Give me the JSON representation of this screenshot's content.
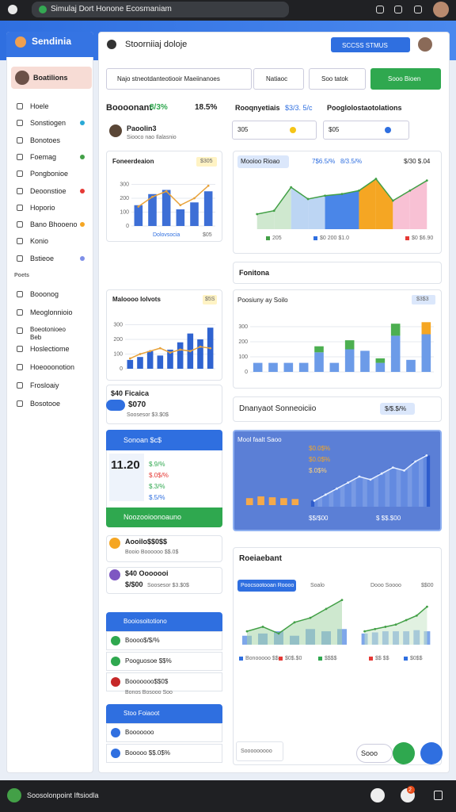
{
  "browser": {
    "tab": "Simulaj Dort Honone Ecosmaniam"
  },
  "sidebar": {
    "brand": "Sendinia",
    "user": "Boatilions",
    "items": [
      "Hoele",
      "Sonstiogen",
      "Bonotoes",
      "Foemag",
      "Pongbonioe",
      "Deoonstioe",
      "Hoporio",
      "Bano Bhooeno",
      "Konio",
      "Bstieoe"
    ],
    "section": "Poets",
    "items2": [
      "Booonog",
      "Meoglonnioio",
      "Boeotonioeo Beb",
      "Hoslectiome",
      "Hoeooonotion",
      "Frosloaiy",
      "Bosotooe"
    ]
  },
  "header": {
    "title": "Stoorniiaj doloje",
    "button": "SCCSS STMUS"
  },
  "toolbar": {
    "search": "Najo  stneotdanteotiooir Maeiinanoes",
    "filter": "Natiaoc",
    "sort": "Soo tatok",
    "action": "Sooo Bioen"
  },
  "summary": {
    "title": "Boooonant",
    "change": "8/3%",
    "rate": "18.5%",
    "profile_name": "Paoolin3",
    "profile_sub": "Siooco nao Ilalasnio",
    "metric1_label": "Rooqnyetiais",
    "metric1_value": "$3/3. 5/c",
    "metric2_label": "Pooglolostaotolations",
    "input1": "305",
    "input2": "$05"
  },
  "card_a": {
    "title": "Foneerdeaion",
    "badge": "$305",
    "footer": "Dolovsocia",
    "footer_value": "$05"
  },
  "card_b": {
    "tab": "Mooioo Rioao",
    "stat1": "7$6.5/%",
    "stat2": "8/3.5/%",
    "stat3": "$/30 $.04",
    "legend": [
      "205",
      "$0 200 $1.0",
      "$0 $6.90"
    ]
  },
  "card_c": {
    "title": "Fonitona"
  },
  "card_d": {
    "title": "Maloooo Iolvots",
    "badge": "$5S"
  },
  "card_e": {
    "title": "Poosiuny ay Soilo",
    "badge": "$3$3"
  },
  "card_f": {
    "label": "$40  Ficaica",
    "pill": "$070",
    "sub": "Soosesor $3.$0$"
  },
  "card_g": {
    "title": "Dnanyaot Sonneoiciio",
    "pill": "$/$.$/%"
  },
  "card_h": {
    "header": "Sonoan $c$",
    "big": "11.20",
    "rows": [
      "$.9/%",
      "$.0$/%",
      "$.3/%",
      "$.5/%"
    ],
    "footer": "Noozooioonoauno"
  },
  "card_i": {
    "title": "Mool faalt Saoo",
    "stats": [
      "$0.0$%",
      "$0.0$%",
      "$.0$%"
    ],
    "left": "$$/$00",
    "right": "$ $$.$00"
  },
  "list": [
    {
      "title": "Aooilo$$0$$",
      "sub": "Booio Boooooo $$.0$"
    },
    {
      "title": "$40 Ooooooi",
      "sub": "$/$00",
      "sub2": "Soosesor $3.$0$"
    }
  ],
  "group1": {
    "header": "Booiosoitotiono",
    "items": [
      "Boooo$/$/%",
      "Pooguosoe $$%",
      "Booooooo$$0$"
    ],
    "note": "Bonos Bosooo Soo"
  },
  "group2": {
    "header": "Stoo Foiaoot",
    "items": [
      "Booooooo",
      "Booooo $$.0$%"
    ]
  },
  "card_j": {
    "title": "Roeiaebant",
    "tab": "Poocsootooan Roooo",
    "col1": "Soalo",
    "col2": "Dooo Soooo",
    "col3": "$$00",
    "legend": [
      "Bonooooo $$",
      "$0$.$0",
      "$$$$",
      "$$ $$",
      "$0$$"
    ],
    "box": "Sooooooooo",
    "chip": "Sooo"
  },
  "taskbar": {
    "title": "Soosolonpoint Iftsiodla",
    "badge": "2"
  },
  "charts": [
    {
      "ylim": [
        0,
        400
      ],
      "yticks": [
        0,
        100,
        200,
        300
      ],
      "series": [
        {
          "kind": "bar",
          "color": "#3d6fd6",
          "values": [
            150,
            230,
            260,
            120,
            170,
            250
          ]
        },
        {
          "kind": "line",
          "color": "#e8a23a",
          "values": [
            140,
            210,
            250,
            150,
            200,
            290
          ]
        }
      ]
    },
    {
      "ylim": [
        0,
        350
      ],
      "yticks": [],
      "series": [
        {
          "kind": "area",
          "color": "#43a047",
          "values": [
            90,
            110,
            250,
            180,
            200,
            210,
            230,
            300,
            170,
            230,
            290
          ],
          "segment_colors": [
            "#cfe8cf",
            "#cfe8cf",
            "#bcd5f3",
            "#bcd5f3",
            "#4a86e8",
            "#4a86e8",
            "#f5a623",
            "#f5a623",
            "#f8c1d4",
            "#f8c1d4"
          ]
        }
      ]
    },
    {
      "ylim": [
        0,
        400
      ],
      "yticks": [
        0,
        100,
        200,
        300
      ],
      "series": [
        {
          "kind": "bar",
          "color": "#2f63d0",
          "values": [
            60,
            80,
            120,
            90,
            130,
            180,
            240,
            200,
            280
          ]
        },
        {
          "kind": "line",
          "color": "#e8a23a",
          "values": [
            70,
            100,
            120,
            140,
            110,
            130,
            120,
            150,
            140
          ]
        }
      ]
    },
    {
      "ylim": [
        0,
        400
      ],
      "yticks": [
        0,
        100,
        200,
        300
      ],
      "stacked": true,
      "series": [
        {
          "kind": "bar",
          "color": "#6c9be8",
          "values": [
            60,
            60,
            60,
            60,
            130,
            60,
            150,
            140,
            60,
            240,
            80,
            250
          ]
        },
        {
          "kind": "bar",
          "color": "#4caf50",
          "values": [
            0,
            0,
            0,
            0,
            40,
            0,
            60,
            0,
            30,
            80,
            0,
            0
          ]
        },
        {
          "kind": "bar",
          "color": "#f5a623",
          "values": [
            0,
            0,
            0,
            0,
            0,
            0,
            0,
            0,
            0,
            0,
            0,
            80
          ]
        }
      ]
    },
    {
      "ylim": [
        0,
        200
      ],
      "yticks": [],
      "series": [
        {
          "kind": "bar",
          "color": "#f5a94a",
          "values": [
            40,
            50,
            45,
            40,
            35
          ]
        }
      ]
    },
    {
      "ylim": [
        0,
        200
      ],
      "yticks": [],
      "series": [
        {
          "kind": "bar",
          "color": "#2e5ccc",
          "values": [
            20,
            40,
            60,
            80,
            100,
            90,
            110,
            130,
            120,
            150,
            170
          ]
        },
        {
          "kind": "area",
          "color": "#e8f0ff",
          "fill": "#8fb0f0",
          "values": [
            20,
            40,
            60,
            80,
            100,
            90,
            110,
            130,
            120,
            150,
            170
          ]
        }
      ]
    },
    {
      "ylim": [
        0,
        220
      ],
      "yticks": [],
      "series": [
        {
          "kind": "bar",
          "color": "#7ea7ea",
          "values": [
            40,
            50,
            60,
            40,
            70,
            60,
            70
          ]
        },
        {
          "kind": "area",
          "color": "#43a047",
          "fill": "#a5d6a7",
          "values": [
            60,
            80,
            50,
            100,
            120,
            160,
            200
          ]
        }
      ]
    },
    {
      "ylim": [
        0,
        220
      ],
      "yticks": [],
      "series": [
        {
          "kind": "bar",
          "color": "#7ea7ea",
          "values": [
            50,
            55,
            60,
            60,
            60,
            65,
            60
          ]
        },
        {
          "kind": "area",
          "color": "#43a047",
          "fill": "#c8e6c9",
          "values": [
            60,
            70,
            80,
            90,
            110,
            130,
            170
          ]
        }
      ]
    }
  ]
}
